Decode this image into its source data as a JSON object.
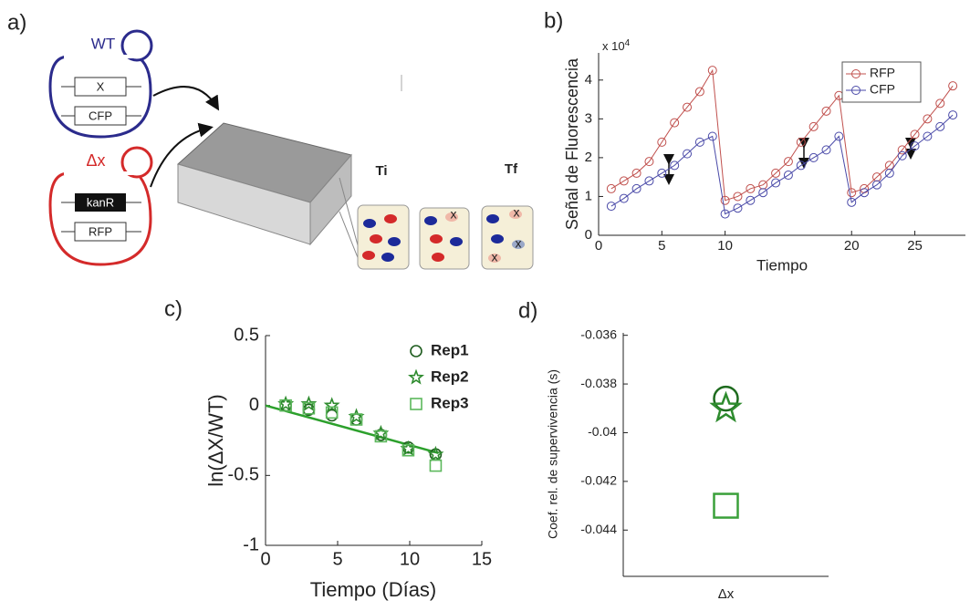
{
  "panel_labels": [
    "a)",
    "b)",
    "c)",
    "d)"
  ],
  "diagram": {
    "wt_label": "WT",
    "wt_genes": [
      "X",
      "CFP"
    ],
    "mutant_label": "Δx",
    "mutant_genes": [
      "kanR",
      "RFP"
    ],
    "time_labels": [
      "Ti",
      "Tf"
    ]
  },
  "chart_data": [
    {
      "type": "line",
      "marker": "circle",
      "x": [
        1,
        2,
        3,
        4,
        5,
        6,
        7,
        8,
        9,
        10,
        11,
        12,
        13,
        14,
        15,
        16,
        17,
        18,
        19,
        20,
        21,
        22,
        23,
        24,
        25,
        26,
        27,
        28
      ],
      "series": [
        {
          "name": "RFP",
          "color": "#c0504d",
          "values": [
            1.2,
            1.4,
            1.6,
            1.9,
            2.4,
            2.9,
            3.3,
            3.7,
            4.25,
            0.9,
            1.0,
            1.2,
            1.3,
            1.6,
            1.9,
            2.4,
            2.8,
            3.2,
            3.6,
            1.1,
            1.2,
            1.5,
            1.8,
            2.2,
            2.6,
            3.0,
            3.4,
            3.85
          ]
        },
        {
          "name": "CFP",
          "color": "#4a4aa8",
          "values": [
            0.75,
            0.95,
            1.2,
            1.4,
            1.6,
            1.8,
            2.1,
            2.4,
            2.55,
            0.55,
            0.7,
            0.9,
            1.1,
            1.35,
            1.55,
            1.8,
            2.0,
            2.2,
            2.55,
            0.85,
            1.1,
            1.3,
            1.6,
            2.05,
            2.3,
            2.55,
            2.8,
            3.1
          ]
        }
      ],
      "xlim": [
        0,
        29
      ],
      "ylim": [
        0,
        4.7
      ],
      "xticks": [
        0,
        5,
        10,
        20,
        25
      ],
      "yticks": [
        0,
        1,
        2,
        3,
        4
      ],
      "xlabel": "Tiempo",
      "ylabel": "Señal de Fluorescencia",
      "y_multiplier": "x 10",
      "y_multiplier_exponent": "4",
      "legend": "upper right"
    },
    {
      "type": "scatter",
      "x": [
        1.4,
        3,
        4.6,
        6.3,
        8,
        9.9,
        11.8
      ],
      "series": [
        {
          "name": "Rep1",
          "color": "#1e5c1e",
          "marker": "circle",
          "values": [
            0,
            -0.03,
            -0.07,
            -0.1,
            -0.21,
            -0.3,
            -0.35
          ]
        },
        {
          "name": "Rep2",
          "color": "#2e8b2e",
          "marker": "star",
          "values": [
            0.01,
            0.01,
            0,
            -0.08,
            -0.2,
            -0.31,
            -0.35
          ]
        },
        {
          "name": "Rep3",
          "color": "#5cb85c",
          "marker": "square",
          "values": [
            0,
            -0.02,
            -0.05,
            -0.1,
            -0.22,
            -0.32,
            -0.43
          ]
        }
      ],
      "fit_line": {
        "x": [
          0,
          12
        ],
        "values": [
          0,
          -0.34
        ],
        "color": "#2ca02c"
      },
      "xlim": [
        0,
        15
      ],
      "ylim": [
        -1,
        0.5
      ],
      "xticks": [
        0,
        5,
        10,
        15
      ],
      "yticks": [
        0.5,
        0,
        -0.5,
        -1
      ],
      "xlabel": "Tiempo (Días)",
      "ylabel": "ln(ΔX/WT)",
      "legend": "upper right"
    },
    {
      "type": "scatter",
      "categories": [
        "Δx"
      ],
      "series": [
        {
          "color": "#1e6b1e",
          "marker": "circle",
          "values": [
            -0.0386
          ]
        },
        {
          "color": "#2e8b2e",
          "marker": "star",
          "values": [
            -0.039
          ]
        },
        {
          "color": "#3aa03a",
          "marker": "square",
          "values": [
            -0.043
          ]
        }
      ],
      "ylim": [
        -0.0459,
        -0.0359
      ],
      "yticks": [
        -0.036,
        -0.038,
        -0.04,
        -0.042,
        -0.044
      ],
      "ylabel": "Coef. rel. de supervivencia (s)"
    }
  ]
}
